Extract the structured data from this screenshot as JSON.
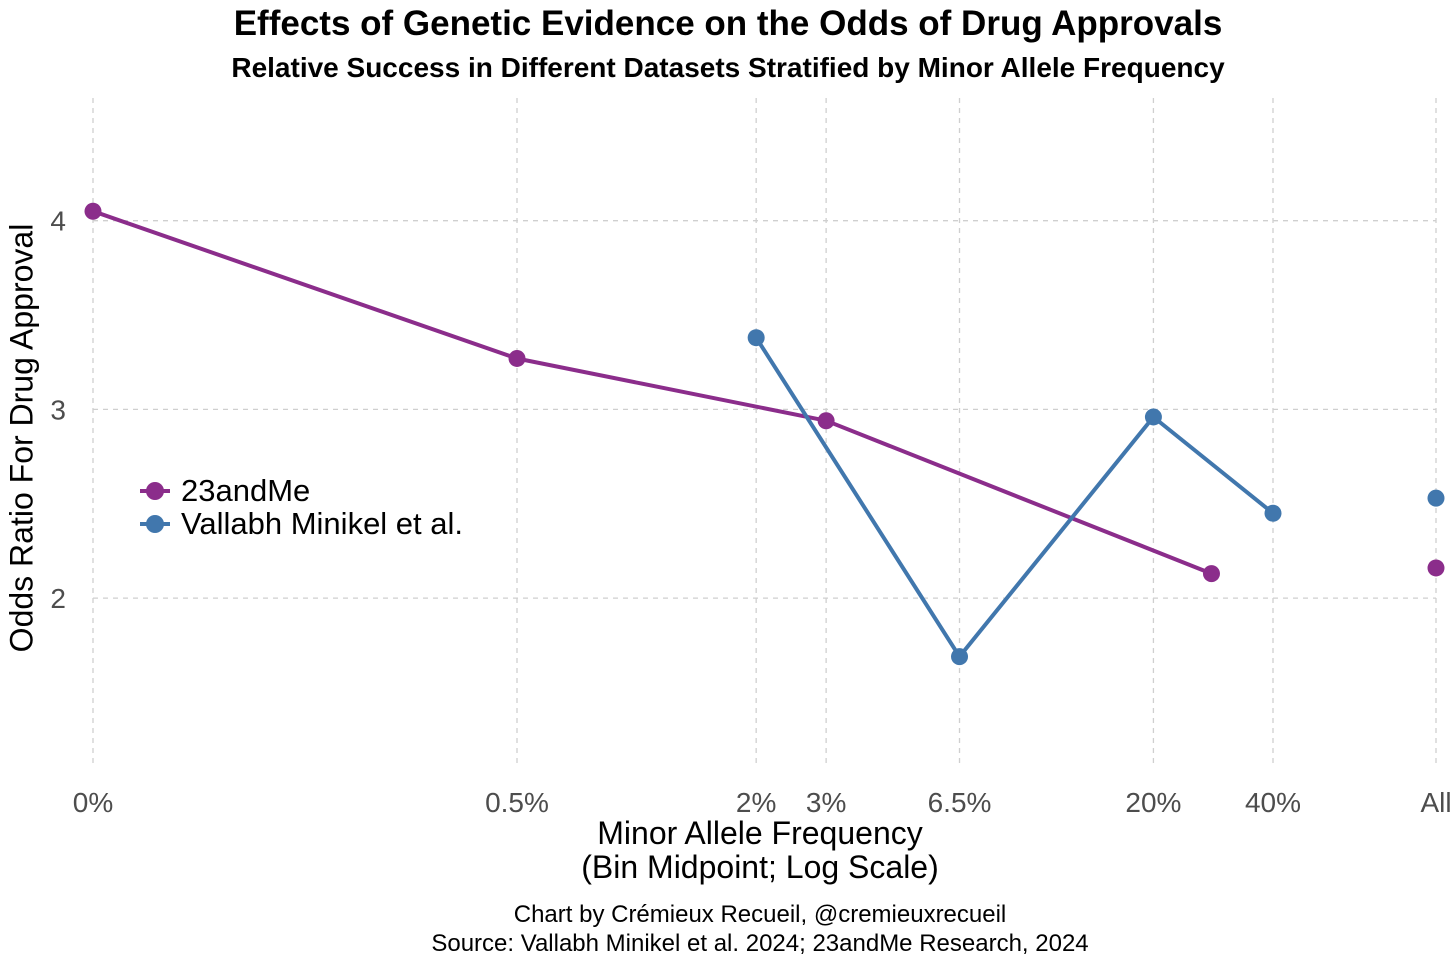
{
  "chart_data": {
    "type": "line",
    "title": "Effects of Genetic Evidence on the Odds of Drug Approvals",
    "subtitle": "Relative Success in Different Datasets Stratified by Minor Allele Frequency",
    "xlabel_line1": "Minor Allele Frequency",
    "xlabel_line2": "(Bin Midpoint; Log Scale)",
    "ylabel": "Odds Ratio For Drug Approval",
    "x_scale": "log",
    "x_ticks": [
      {
        "value": 0,
        "label": "0%"
      },
      {
        "value": 0.5,
        "label": "0.5%"
      },
      {
        "value": 2,
        "label": "2%"
      },
      {
        "value": 3,
        "label": "3%"
      },
      {
        "value": 6.5,
        "label": "6.5%"
      },
      {
        "value": 20,
        "label": "20%"
      },
      {
        "value": 40,
        "label": "40%"
      },
      {
        "value": "All",
        "label": "All"
      }
    ],
    "y_ticks": [
      2,
      3,
      4
    ],
    "ylim": [
      1.1,
      4.65
    ],
    "grid": true,
    "legend_position": "left-center",
    "series": [
      {
        "name": "23andMe",
        "color": "#8B2D8B",
        "points": [
          {
            "x": 0,
            "y": 4.05
          },
          {
            "x": 0.5,
            "y": 3.27
          },
          {
            "x": 3,
            "y": 2.94
          },
          {
            "x": 28,
            "y": 2.13
          }
        ],
        "all": 2.16
      },
      {
        "name": "Vallabh Minikel et al.",
        "color": "#4177AD",
        "points": [
          {
            "x": 2,
            "y": 3.38
          },
          {
            "x": 6.5,
            "y": 1.69
          },
          {
            "x": 20,
            "y": 2.96
          },
          {
            "x": 40,
            "y": 2.45
          }
        ],
        "all": 2.53
      }
    ],
    "caption_line1": "Chart by Crémieux Recueil, @cremieuxrecueil",
    "caption_line2": "Source: Vallabh Minikel et al. 2024; 23andMe Research, 2024"
  }
}
